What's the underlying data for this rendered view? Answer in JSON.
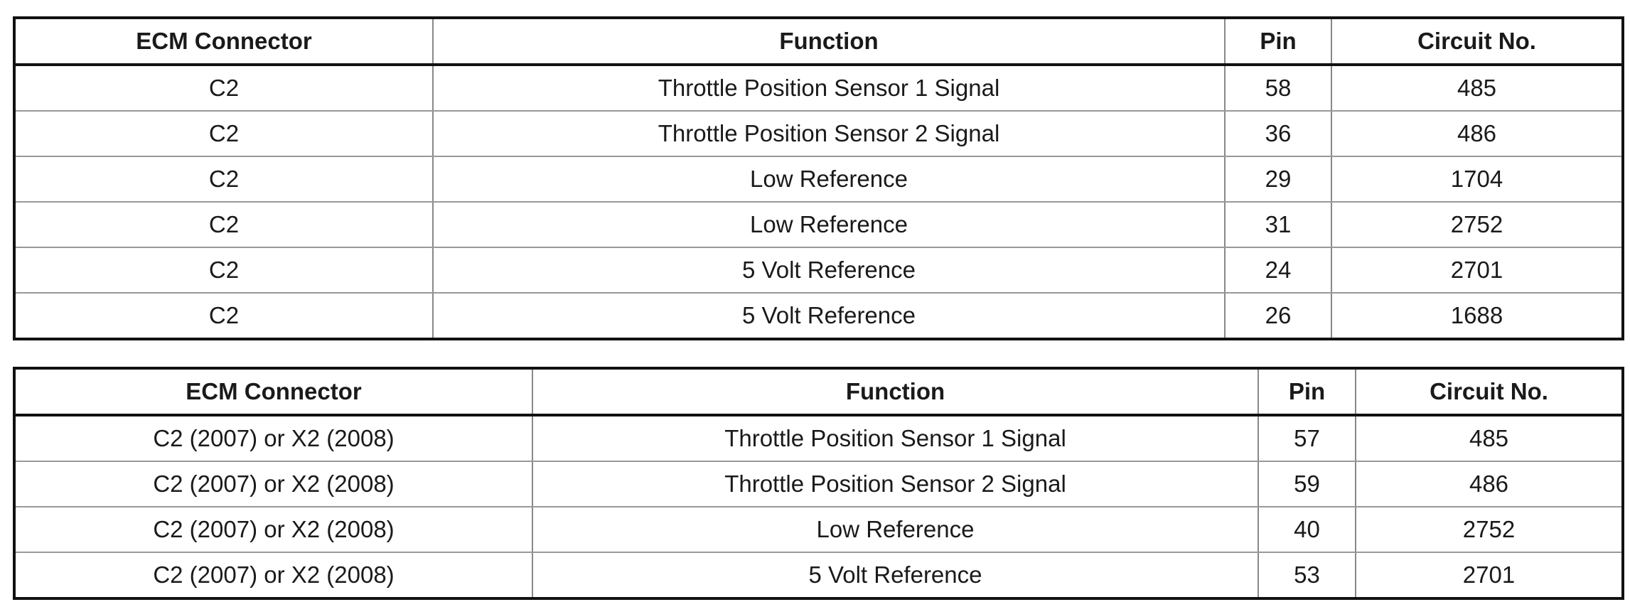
{
  "tables": [
    {
      "headers": [
        "ECM Connector",
        "Function",
        "Pin",
        "Circuit No."
      ],
      "rows": [
        [
          "C2",
          "Throttle Position Sensor 1 Signal",
          "58",
          "485"
        ],
        [
          "C2",
          "Throttle Position Sensor 2 Signal",
          "36",
          "486"
        ],
        [
          "C2",
          "Low Reference",
          "29",
          "1704"
        ],
        [
          "C2",
          "Low Reference",
          "31",
          "2752"
        ],
        [
          "C2",
          "5 Volt Reference",
          "24",
          "2701"
        ],
        [
          "C2",
          "5 Volt Reference",
          "26",
          "1688"
        ]
      ]
    },
    {
      "headers": [
        "ECM Connector",
        "Function",
        "Pin",
        "Circuit No."
      ],
      "rows": [
        [
          "C2 (2007) or X2 (2008)",
          "Throttle Position Sensor 1 Signal",
          "57",
          "485"
        ],
        [
          "C2 (2007) or X2 (2008)",
          "Throttle Position Sensor 2 Signal",
          "59",
          "486"
        ],
        [
          "C2 (2007) or X2 (2008)",
          "Low Reference",
          "40",
          "2752"
        ],
        [
          "C2 (2007) or X2 (2008)",
          "5 Volt Reference",
          "53",
          "2701"
        ]
      ]
    }
  ]
}
